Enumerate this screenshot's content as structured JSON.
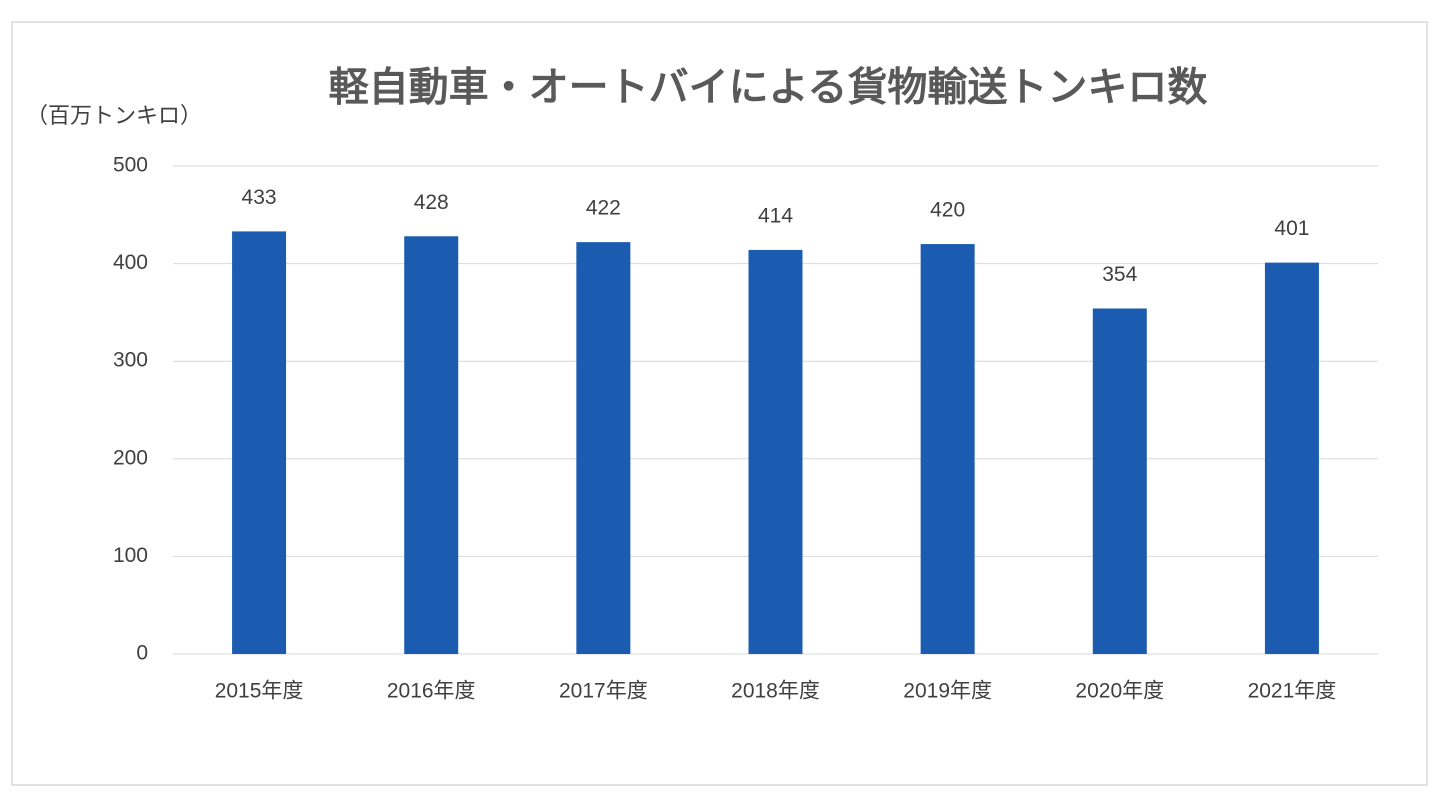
{
  "chart_data": {
    "type": "bar",
    "title": "軽自動車・オートバイによる貨物輸送トンキロ数",
    "y_label": "（百万トンキロ）",
    "categories": [
      "2015年度",
      "2016年度",
      "2017年度",
      "2018年度",
      "2019年度",
      "2020年度",
      "2021年度"
    ],
    "values": [
      433,
      428,
      422,
      414,
      420,
      354,
      401
    ],
    "color": "#1b5cb1",
    "ylim": [
      0,
      500
    ],
    "yticks": [
      0,
      100,
      200,
      300,
      400,
      500
    ],
    "grid": true
  }
}
